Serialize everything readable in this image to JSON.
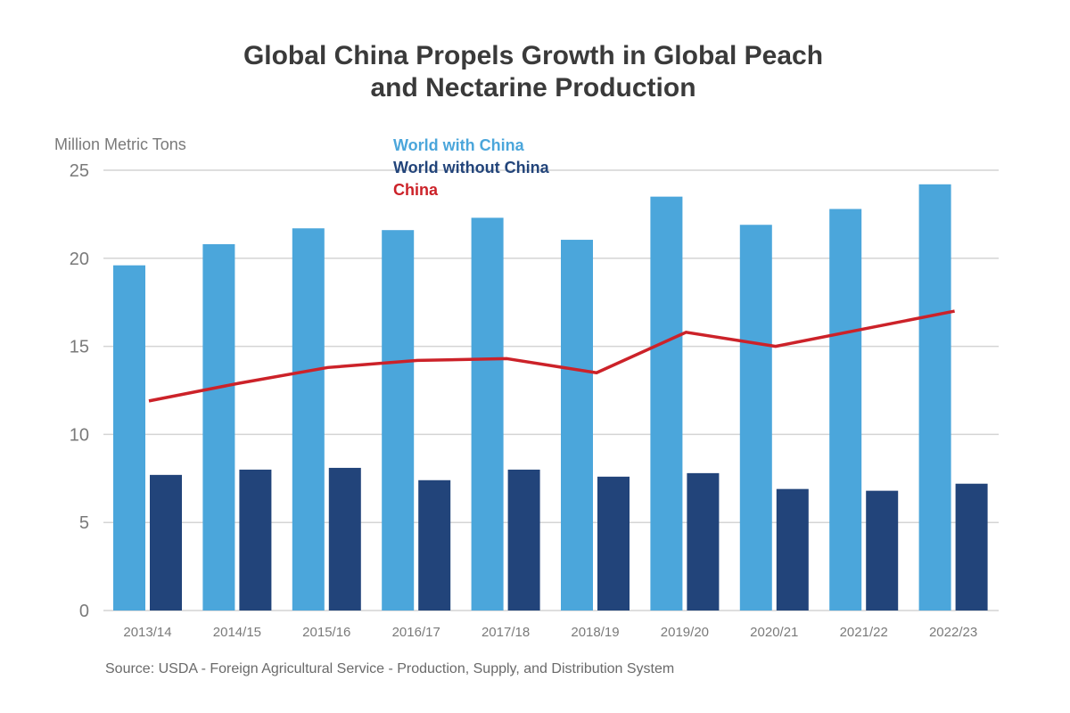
{
  "chart_data": {
    "type": "bar",
    "title": [
      "Global China Propels Growth in Global Peach",
      "and Nectarine Production"
    ],
    "ylabel": "Million Metric Tons",
    "xlabel": "",
    "ylim": [
      0,
      25
    ],
    "yticks": [
      0,
      5,
      10,
      15,
      20,
      25
    ],
    "grid": true,
    "legend_position": "top-center",
    "categories": [
      "2013/14",
      "2014/15",
      "2015/16",
      "2016/17",
      "2017/18",
      "2018/19",
      "2019/20",
      "2020/21",
      "2021/22",
      "2022/23"
    ],
    "series": [
      {
        "name": "World with China",
        "type": "bar",
        "color": "#4ba6db",
        "values": [
          19.6,
          20.8,
          21.7,
          21.6,
          22.3,
          21.05,
          23.5,
          21.9,
          22.8,
          24.2
        ]
      },
      {
        "name": "World without China",
        "type": "bar",
        "color": "#22447a",
        "values": [
          7.7,
          8.0,
          8.1,
          7.4,
          8.0,
          7.6,
          7.8,
          6.9,
          6.8,
          7.2
        ]
      },
      {
        "name": "China",
        "type": "line",
        "color": "#cc2229",
        "values": [
          11.9,
          12.9,
          13.8,
          14.2,
          14.3,
          13.5,
          15.8,
          15.0,
          16.0,
          17.0
        ]
      }
    ],
    "source": "Source: USDA - Foreign Agricultural Service - Production, Supply, and Distribution System"
  }
}
